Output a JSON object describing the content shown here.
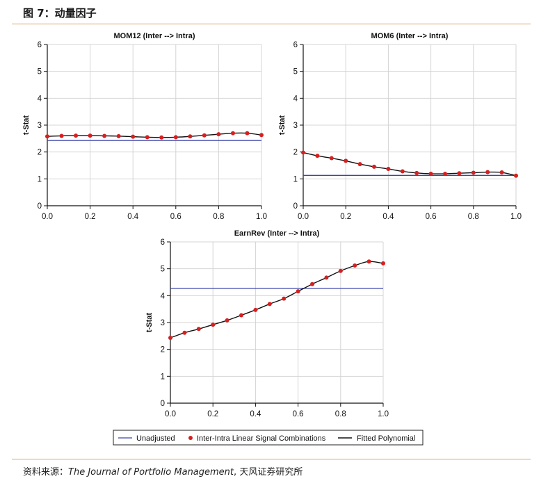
{
  "figure": {
    "title": "图 7：动量因子",
    "source_label": "资料来源：",
    "source_journal": "The Journal of Portfolio Management",
    "source_sep": ",",
    "source_org": "天风证券研究所"
  },
  "legend": {
    "unadjusted": "Unadjusted",
    "points": "Inter-Intra Linear Signal Combinations",
    "poly": "Fitted Polynomial"
  },
  "colors": {
    "unadjusted": "#3a44a8",
    "points": "#d42020",
    "poly": "#111111",
    "grid": "#d4d4d4",
    "axis": "#111111",
    "rule": "#e0a060"
  },
  "chart_data": [
    {
      "type": "line",
      "title": "MOM12 (Inter --> Intra)",
      "xlabel": "",
      "ylabel": "t-Stat",
      "xlim": [
        0,
        1
      ],
      "ylim": [
        0,
        6
      ],
      "xticks": [
        0,
        0.2,
        0.4,
        0.6,
        0.8,
        1
      ],
      "xtick_labels": [
        "0.0",
        "0.2",
        "0.4",
        "0.6",
        "0.8",
        "1.0"
      ],
      "yticks": [
        0,
        1,
        2,
        3,
        4,
        5,
        6
      ],
      "ytick_labels": [
        "0",
        "1",
        "2",
        "3",
        "4",
        "5",
        "6"
      ],
      "grid": true,
      "series": [
        {
          "name": "Unadjusted",
          "kind": "hline",
          "y": 2.43
        },
        {
          "name": "Inter-Intra Linear Signal Combinations",
          "kind": "points",
          "x": [
            0,
            0.0667,
            0.1333,
            0.2,
            0.2667,
            0.3333,
            0.4,
            0.4667,
            0.5333,
            0.6,
            0.6667,
            0.7333,
            0.8,
            0.8667,
            0.9333,
            1.0
          ],
          "y": [
            2.58,
            2.6,
            2.61,
            2.61,
            2.6,
            2.59,
            2.57,
            2.55,
            2.54,
            2.55,
            2.58,
            2.62,
            2.66,
            2.7,
            2.7,
            2.63
          ]
        },
        {
          "name": "Fitted Polynomial",
          "kind": "curve",
          "x": [
            0,
            0.0667,
            0.1333,
            0.2,
            0.2667,
            0.3333,
            0.4,
            0.4667,
            0.5333,
            0.6,
            0.6667,
            0.7333,
            0.8,
            0.8667,
            0.9333,
            1.0
          ],
          "y": [
            2.58,
            2.6,
            2.61,
            2.61,
            2.6,
            2.59,
            2.57,
            2.55,
            2.54,
            2.55,
            2.58,
            2.62,
            2.66,
            2.7,
            2.7,
            2.63
          ]
        }
      ]
    },
    {
      "type": "line",
      "title": "MOM6 (Inter --> Intra)",
      "xlabel": "",
      "ylabel": "t-Stat",
      "xlim": [
        0,
        1
      ],
      "ylim": [
        0,
        6
      ],
      "xticks": [
        0,
        0.2,
        0.4,
        0.6,
        0.8,
        1
      ],
      "xtick_labels": [
        "0.0",
        "0.2",
        "0.4",
        "0.6",
        "0.8",
        "1.0"
      ],
      "yticks": [
        0,
        1,
        2,
        3,
        4,
        5,
        6
      ],
      "ytick_labels": [
        "0",
        "1",
        "2",
        "3",
        "4",
        "5",
        "6"
      ],
      "grid": true,
      "series": [
        {
          "name": "Unadjusted",
          "kind": "hline",
          "y": 1.13
        },
        {
          "name": "Inter-Intra Linear Signal Combinations",
          "kind": "points",
          "x": [
            0,
            0.0667,
            0.1333,
            0.2,
            0.2667,
            0.3333,
            0.4,
            0.4667,
            0.5333,
            0.6,
            0.6667,
            0.7333,
            0.8,
            0.8667,
            0.9333,
            1.0
          ],
          "y": [
            1.98,
            1.86,
            1.77,
            1.67,
            1.55,
            1.45,
            1.37,
            1.28,
            1.22,
            1.19,
            1.19,
            1.21,
            1.23,
            1.25,
            1.24,
            1.12
          ]
        },
        {
          "name": "Fitted Polynomial",
          "kind": "curve",
          "x": [
            0,
            0.0667,
            0.1333,
            0.2,
            0.2667,
            0.3333,
            0.4,
            0.4667,
            0.5333,
            0.6,
            0.6667,
            0.7333,
            0.8,
            0.8667,
            0.9333,
            1.0
          ],
          "y": [
            1.98,
            1.86,
            1.77,
            1.67,
            1.55,
            1.45,
            1.37,
            1.28,
            1.22,
            1.19,
            1.19,
            1.21,
            1.23,
            1.25,
            1.24,
            1.12
          ]
        }
      ]
    },
    {
      "type": "line",
      "title": "EarnRev (Inter --> Intra)",
      "xlabel": "",
      "ylabel": "t-Stat",
      "xlim": [
        0,
        1
      ],
      "ylim": [
        0,
        6
      ],
      "xticks": [
        0,
        0.2,
        0.4,
        0.6,
        0.8,
        1
      ],
      "xtick_labels": [
        "0.0",
        "0.2",
        "0.4",
        "0.6",
        "0.8",
        "1.0"
      ],
      "yticks": [
        0,
        1,
        2,
        3,
        4,
        5,
        6
      ],
      "ytick_labels": [
        "0",
        "1",
        "2",
        "3",
        "4",
        "5",
        "6"
      ],
      "grid": true,
      "series": [
        {
          "name": "Unadjusted",
          "kind": "hline",
          "y": 4.27
        },
        {
          "name": "Inter-Intra Linear Signal Combinations",
          "kind": "points",
          "x": [
            0,
            0.0667,
            0.1333,
            0.2,
            0.2667,
            0.3333,
            0.4,
            0.4667,
            0.5333,
            0.6,
            0.6667,
            0.7333,
            0.8,
            0.8667,
            0.9333,
            1.0
          ],
          "y": [
            2.43,
            2.62,
            2.76,
            2.92,
            3.08,
            3.27,
            3.47,
            3.69,
            3.89,
            4.16,
            4.43,
            4.67,
            4.92,
            5.12,
            5.27,
            5.2
          ]
        },
        {
          "name": "Fitted Polynomial",
          "kind": "curve",
          "x": [
            0,
            0.0667,
            0.1333,
            0.2,
            0.2667,
            0.3333,
            0.4,
            0.4667,
            0.5333,
            0.6,
            0.6667,
            0.7333,
            0.8,
            0.8667,
            0.9333,
            1.0
          ],
          "y": [
            2.43,
            2.62,
            2.76,
            2.92,
            3.08,
            3.27,
            3.47,
            3.69,
            3.89,
            4.16,
            4.43,
            4.67,
            4.92,
            5.12,
            5.27,
            5.2
          ]
        }
      ]
    }
  ]
}
